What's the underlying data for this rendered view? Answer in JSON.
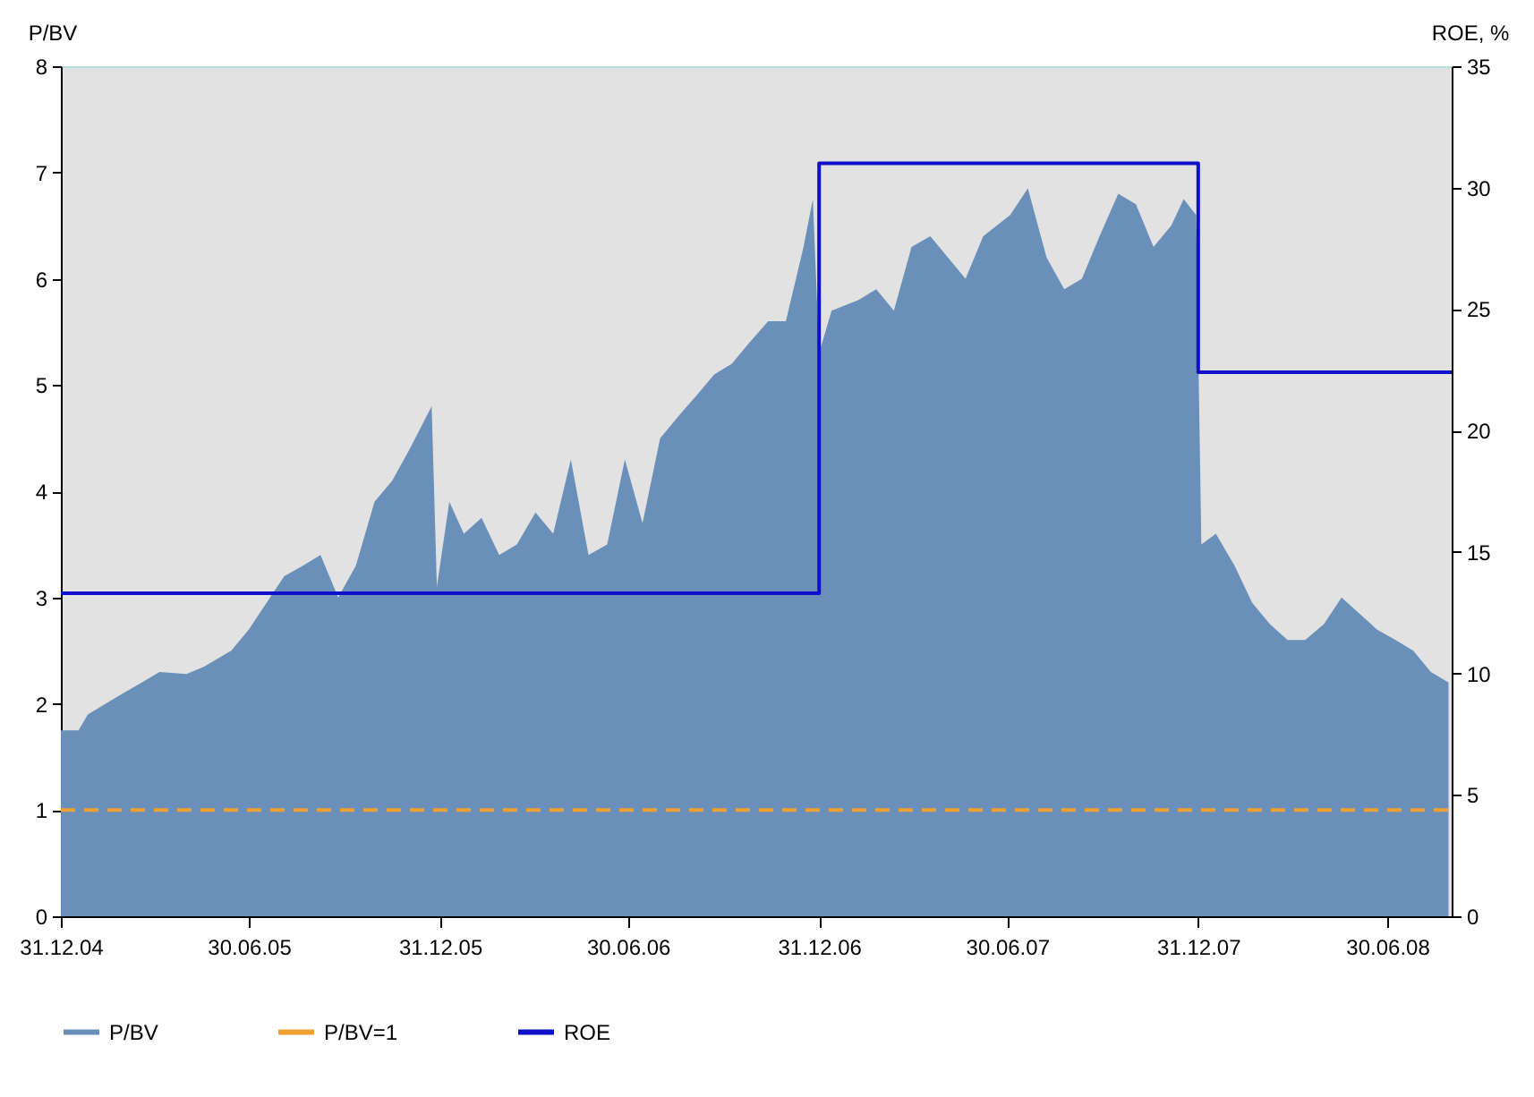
{
  "chart_data": {
    "type": "area",
    "ylabel": "P/BV",
    "y2label": "ROE, %",
    "x": [
      "2004-12-31",
      "2005-01-17",
      "2005-01-26",
      "2005-02-12",
      "2005-03-01",
      "2005-03-19",
      "2005-04-05",
      "2005-05-01",
      "2005-05-18",
      "2005-06-13",
      "2005-06-30",
      "2005-07-17",
      "2005-08-03",
      "2005-08-21",
      "2005-09-07",
      "2005-09-24",
      "2005-10-11",
      "2005-10-29",
      "2005-11-15",
      "2005-12-02",
      "2005-12-23",
      "2005-12-28",
      "2006-01-09",
      "2006-01-23",
      "2006-02-09",
      "2006-02-26",
      "2006-03-15",
      "2006-04-02",
      "2006-04-19",
      "2006-05-06",
      "2006-05-23",
      "2006-06-10",
      "2006-06-27",
      "2006-07-14",
      "2006-07-31",
      "2006-08-17",
      "2006-09-04",
      "2006-09-21",
      "2006-10-08",
      "2006-10-25",
      "2006-11-12",
      "2006-11-29",
      "2006-12-16",
      "2006-12-25",
      "2006-12-31",
      "2007-01-12",
      "2007-02-07",
      "2007-02-24",
      "2007-03-13",
      "2007-03-30",
      "2007-04-17",
      "2007-05-04",
      "2007-05-21",
      "2007-06-07",
      "2007-07-03",
      "2007-07-20",
      "2007-08-07",
      "2007-08-24",
      "2007-09-10",
      "2007-09-27",
      "2007-10-15",
      "2007-11-01",
      "2007-11-18",
      "2007-12-05",
      "2007-12-17",
      "2007-12-29",
      "2008-01-03",
      "2008-01-17",
      "2008-02-04",
      "2008-02-21",
      "2008-03-09",
      "2008-03-26",
      "2008-04-12",
      "2008-04-30",
      "2008-05-17",
      "2008-06-03",
      "2008-06-20",
      "2008-07-08",
      "2008-07-25",
      "2008-08-11",
      "2008-08-28"
    ],
    "series": [
      {
        "name": "P/BV",
        "color": "#6a8fb8",
        "values": [
          1.75,
          1.75,
          1.9,
          2.0,
          2.1,
          2.2,
          2.3,
          2.28,
          2.35,
          2.5,
          2.7,
          2.95,
          3.2,
          3.3,
          3.4,
          3.0,
          3.3,
          3.9,
          4.1,
          4.4,
          4.8,
          3.1,
          3.9,
          3.6,
          3.75,
          3.4,
          3.5,
          3.8,
          3.6,
          4.3,
          3.4,
          3.5,
          4.3,
          3.7,
          4.5,
          4.7,
          4.9,
          5.1,
          5.2,
          5.4,
          5.6,
          5.6,
          6.3,
          6.75,
          5.3,
          5.7,
          5.8,
          5.9,
          5.7,
          6.3,
          6.4,
          6.2,
          6.0,
          6.4,
          6.6,
          6.85,
          6.2,
          5.9,
          6.0,
          6.4,
          6.8,
          6.7,
          6.3,
          6.5,
          6.75,
          6.6,
          3.5,
          3.6,
          3.3,
          2.95,
          2.75,
          2.6,
          2.6,
          2.75,
          3.0,
          2.85,
          2.7,
          2.6,
          2.5,
          2.3,
          2.2
        ]
      },
      {
        "name": "P/BV=1",
        "type": "line",
        "line_style": "dashed",
        "color": "#f0a030",
        "x": [
          "2004-12-31",
          "2008-08-31"
        ],
        "values": [
          1,
          1
        ]
      },
      {
        "name": "ROE",
        "type": "step",
        "axis": "y2",
        "color": "#1010cc",
        "x": [
          "2004-12-31",
          "2006-12-31",
          "2007-12-31",
          "2008-08-31"
        ],
        "values": [
          13.3,
          31,
          22.4,
          22.4
        ]
      }
    ],
    "xlim": [
      "2004-12-31",
      "2008-08-31"
    ],
    "xticks": [
      {
        "value": "2004-12-31",
        "label": "31.12.04"
      },
      {
        "value": "2005-06-30",
        "label": "30.06.05"
      },
      {
        "value": "2005-12-31",
        "label": "31.12.05"
      },
      {
        "value": "2006-06-30",
        "label": "30.06.06"
      },
      {
        "value": "2006-12-31",
        "label": "31.12.06"
      },
      {
        "value": "2007-06-30",
        "label": "30.06.07"
      },
      {
        "value": "2007-12-31",
        "label": "31.12.07"
      },
      {
        "value": "2008-06-30",
        "label": "30.06.08"
      }
    ],
    "ylim": [
      0,
      8
    ],
    "yticks": [
      0,
      1,
      2,
      3,
      4,
      5,
      6,
      7,
      8
    ],
    "y2lim": [
      0,
      35
    ],
    "y2ticks": [
      0,
      5,
      10,
      15,
      20,
      25,
      30,
      35
    ],
    "grid": false,
    "legend": "bottom"
  }
}
